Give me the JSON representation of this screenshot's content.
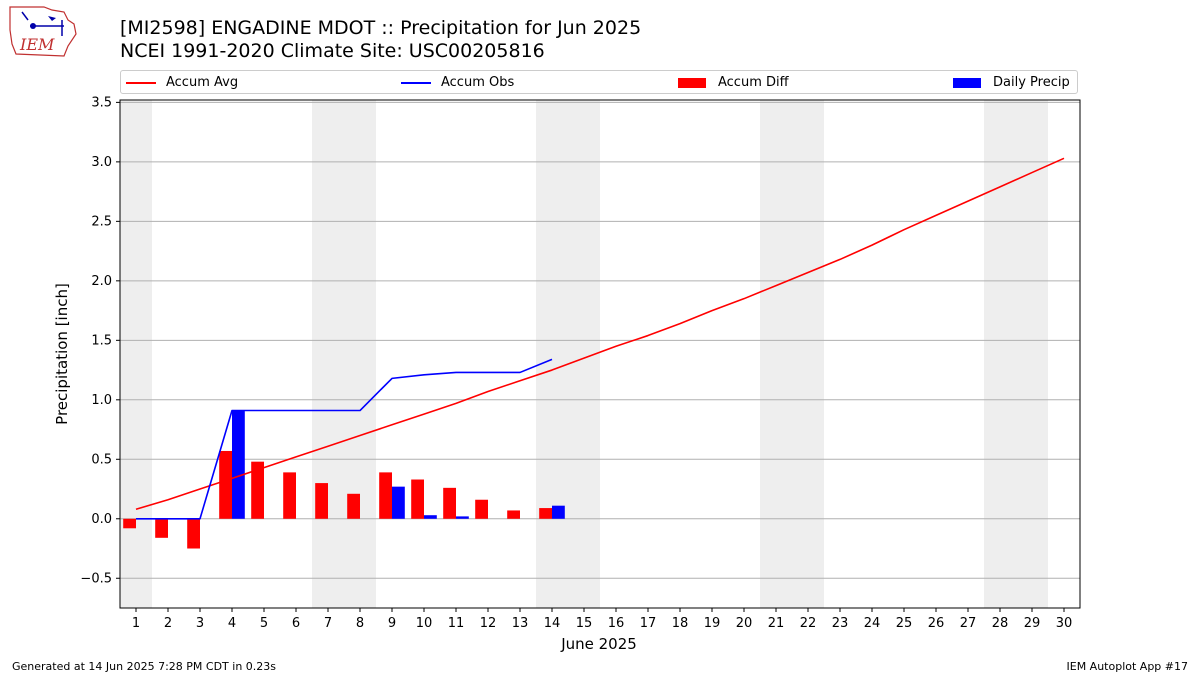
{
  "header": {
    "title_line1": "[MI2598] ENGADINE MDOT :: Precipitation for Jun 2025",
    "title_line2": "NCEI 1991-2020 Climate Site: USC00205816",
    "logo_text": "IEM"
  },
  "legend": [
    {
      "label": "Accum Avg",
      "color": "#ff0000",
      "kind": "line"
    },
    {
      "label": "Accum Obs",
      "color": "#0000ff",
      "kind": "line"
    },
    {
      "label": "Accum Diff",
      "color": "#ff0000",
      "kind": "bar"
    },
    {
      "label": "Daily Precip",
      "color": "#0000ff",
      "kind": "bar"
    }
  ],
  "footer": {
    "left": "Generated at 14 Jun 2025 7:28 PM CDT in 0.23s",
    "right": "IEM Autoplot App #17"
  },
  "chart_data": {
    "type": "bar",
    "xlabel": "June 2025",
    "ylabel": "Precipitation [inch]",
    "xlim": [
      0.5,
      30.5
    ],
    "ylim": [
      -0.75,
      3.52
    ],
    "x_ticks": [
      1,
      2,
      3,
      4,
      5,
      6,
      7,
      8,
      9,
      10,
      11,
      12,
      13,
      14,
      15,
      16,
      17,
      18,
      19,
      20,
      21,
      22,
      23,
      24,
      25,
      26,
      27,
      28,
      29,
      30
    ],
    "y_ticks": [
      -0.5,
      0.0,
      0.5,
      1.0,
      1.5,
      2.0,
      2.5,
      3.0,
      3.5
    ],
    "y_tick_labels": [
      "−0.5",
      "0.0",
      "0.5",
      "1.0",
      "1.5",
      "2.0",
      "2.5",
      "3.0",
      "3.5"
    ],
    "grid": "horizontal",
    "weekend_shading": [
      [
        0.5,
        1.5
      ],
      [
        6.5,
        8.5
      ],
      [
        13.5,
        15.5
      ],
      [
        20.5,
        22.5
      ],
      [
        27.5,
        29.5
      ]
    ],
    "shading_color": "#eeeeee",
    "series": [
      {
        "name": "Accum Avg",
        "type": "line",
        "color": "#ff0000",
        "x": [
          1,
          2,
          3,
          4,
          5,
          6,
          7,
          8,
          9,
          10,
          11,
          12,
          13,
          14,
          15,
          16,
          17,
          18,
          19,
          20,
          21,
          22,
          23,
          24,
          25,
          26,
          27,
          28,
          29,
          30
        ],
        "values": [
          0.08,
          0.16,
          0.25,
          0.34,
          0.43,
          0.52,
          0.61,
          0.7,
          0.79,
          0.88,
          0.97,
          1.07,
          1.16,
          1.25,
          1.35,
          1.45,
          1.54,
          1.64,
          1.75,
          1.85,
          1.96,
          2.07,
          2.18,
          2.3,
          2.43,
          2.55,
          2.67,
          2.79,
          2.91,
          3.03
        ]
      },
      {
        "name": "Accum Obs",
        "type": "line",
        "color": "#0000ff",
        "x": [
          1,
          2,
          3,
          4,
          5,
          6,
          7,
          8,
          9,
          10,
          11,
          12,
          13,
          14
        ],
        "values": [
          0.0,
          0.0,
          0.0,
          0.91,
          0.91,
          0.91,
          0.91,
          0.91,
          1.18,
          1.21,
          1.23,
          1.23,
          1.23,
          1.34
        ]
      },
      {
        "name": "Accum Diff",
        "type": "bar",
        "color": "#ff0000",
        "x": [
          1,
          2,
          3,
          4,
          5,
          6,
          7,
          8,
          9,
          10,
          11,
          12,
          13,
          14
        ],
        "values": [
          -0.08,
          -0.16,
          -0.25,
          0.57,
          0.48,
          0.39,
          0.3,
          0.21,
          0.39,
          0.33,
          0.26,
          0.16,
          0.07,
          0.09
        ]
      },
      {
        "name": "Daily Precip",
        "type": "bar",
        "color": "#0000ff",
        "x": [
          1,
          2,
          3,
          4,
          5,
          6,
          7,
          8,
          9,
          10,
          11,
          12,
          13,
          14
        ],
        "values": [
          0.0,
          0.0,
          0.0,
          0.91,
          0.0,
          0.0,
          0.0,
          0.0,
          0.27,
          0.03,
          0.02,
          0.0,
          0.0,
          0.11
        ]
      }
    ]
  }
}
